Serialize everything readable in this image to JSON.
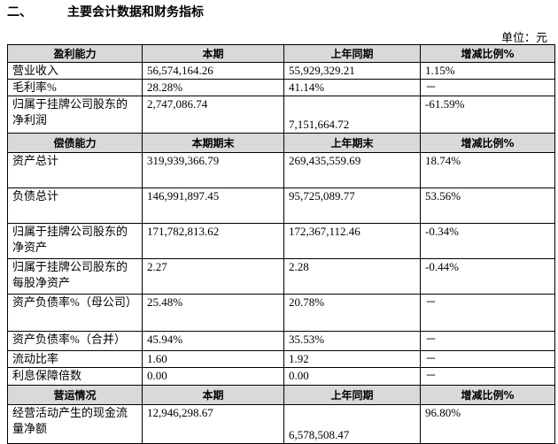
{
  "header": {
    "section": "二、",
    "title": "主要会计数据和财务指标",
    "unit": "单位：元"
  },
  "table": {
    "sections": [
      {
        "header": [
          "盈利能力",
          "本期",
          "上年同期",
          "增减比例%"
        ],
        "rows": [
          [
            "营业收入",
            "56,574,164.26",
            "55,929,329.21",
            "1.15%"
          ],
          [
            "毛利率%",
            "28.28%",
            "41.14%",
            "－"
          ],
          [
            "归属于挂牌公司股东的净利润",
            "2,747,086.74",
            "7,151,664.72",
            "-61.59%"
          ]
        ]
      },
      {
        "header": [
          "偿债能力",
          "本期期末",
          "上年期末",
          "增减比例%"
        ],
        "rows": [
          [
            "资产总计",
            "319,939,366.79",
            "269,435,559.69",
            "18.74%"
          ],
          [
            "负债总计",
            "146,991,897.45",
            "95,725,089.77",
            "53.56%"
          ],
          [
            "归属于挂牌公司股东的净资产",
            "171,782,813.62",
            "172,367,112.46",
            "-0.34%"
          ],
          [
            "归属于挂牌公司股东的每股净资产",
            "2.27",
            "2.28",
            "-0.44%"
          ],
          [
            "资产负债率%（母公司）",
            "25.48%",
            "20.78%",
            "－"
          ],
          [
            "资产负债率%（合并）",
            "45.94%",
            "35.53%",
            "－"
          ],
          [
            "流动比率",
            "1.60",
            "1.92",
            "－"
          ],
          [
            "利息保障倍数",
            "0.00",
            "0.00",
            "－"
          ]
        ]
      },
      {
        "header": [
          "营运情况",
          "本期",
          "上年同期",
          "增减比例%"
        ],
        "rows": [
          [
            "经营活动产生的现金流量净额",
            "12,946,298.67",
            "6,578,508.47",
            "96.80%"
          ]
        ]
      }
    ]
  }
}
